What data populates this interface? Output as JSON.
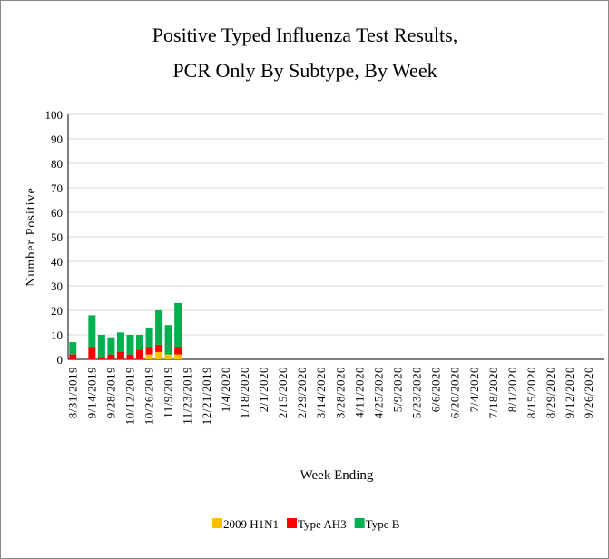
{
  "chart_data": {
    "type": "stacked_bar",
    "title": [
      "Positive Typed Influenza Test Results,",
      "PCR Only By Subtype, By Week"
    ],
    "x_label": "Week Ending",
    "y_label": "Number Positive",
    "categories": [
      "8/31/2019",
      null,
      "9/14/2019",
      null,
      "9/28/2019",
      null,
      "10/12/2019",
      null,
      "10/26/2019",
      null,
      "11/9/2019",
      null,
      "11/23/2019",
      null,
      "12/21/2019",
      null,
      "1/4/2020",
      null,
      "1/18/2020",
      null,
      "2/1/2020",
      null,
      "2/15/2020",
      null,
      "2/29/2020",
      null,
      "3/14/2020",
      null,
      "3/28/2020",
      null,
      "4/11/2020",
      null,
      "4/25/2020",
      null,
      "5/9/2020",
      null,
      "5/23/2020",
      null,
      "6/6/2020",
      null,
      "6/20/2020",
      null,
      "7/4/2020",
      null,
      "7/18/2020",
      null,
      "8/1/2020",
      null,
      "8/15/2020",
      null,
      "8/29/2020",
      null,
      "9/12/2020",
      null,
      "9/26/2020",
      null
    ],
    "series": [
      {
        "name": "2009 H1N1",
        "color": "#ffc000",
        "values": [
          0,
          0,
          0,
          0,
          0,
          0,
          0,
          0,
          2,
          3,
          2,
          2,
          0,
          0,
          0,
          0,
          0,
          0,
          0,
          0,
          0,
          0,
          0,
          0,
          0,
          0,
          0,
          0,
          0,
          0,
          0,
          0,
          0,
          0,
          0,
          0,
          0,
          0,
          0,
          0,
          0,
          0,
          0,
          0,
          0,
          0,
          0,
          0,
          0,
          0,
          0,
          0,
          0,
          0,
          0,
          0
        ]
      },
      {
        "name": "Type AH3",
        "color": "#ff0000",
        "values": [
          2,
          0,
          5,
          1,
          2,
          3,
          2,
          4,
          3,
          3,
          0,
          3,
          0,
          0,
          0,
          0,
          0,
          0,
          0,
          0,
          0,
          0,
          0,
          0,
          0,
          0,
          0,
          0,
          0,
          0,
          0,
          0,
          0,
          0,
          0,
          0,
          0,
          0,
          0,
          0,
          0,
          0,
          0,
          0,
          0,
          0,
          0,
          0,
          0,
          0,
          0,
          0,
          0,
          0,
          0,
          0
        ]
      },
      {
        "name": "Type B",
        "color": "#00b050",
        "values": [
          5,
          0,
          13,
          9,
          7,
          8,
          8,
          6,
          8,
          14,
          12,
          18,
          0,
          0,
          0,
          0,
          0,
          0,
          0,
          0,
          0,
          0,
          0,
          0,
          0,
          0,
          0,
          0,
          0,
          0,
          0,
          0,
          0,
          0,
          0,
          0,
          0,
          0,
          0,
          0,
          0,
          0,
          0,
          0,
          0,
          0,
          0,
          0,
          0,
          0,
          0,
          0,
          0,
          0,
          0,
          0
        ]
      }
    ],
    "ylim": [
      0,
      100
    ],
    "yticks": [
      0,
      10,
      20,
      30,
      40,
      50,
      60,
      70,
      80,
      90,
      100
    ],
    "grid": true
  }
}
